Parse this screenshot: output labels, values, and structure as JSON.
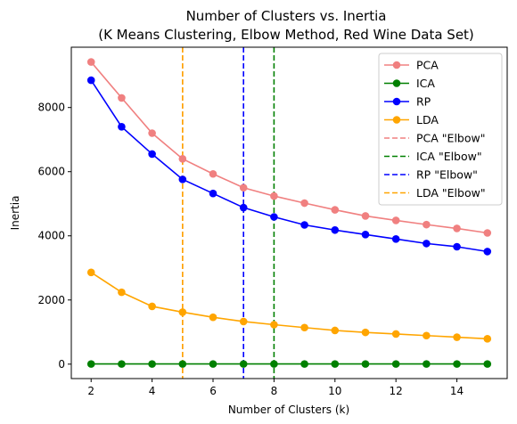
{
  "chart_data": {
    "type": "line",
    "title": [
      "Number of Clusters vs. Inertia",
      "(K Means Clustering, Elbow Method, Red Wine Data Set)"
    ],
    "xlabel": "Number of Clusters (k)",
    "ylabel": "Inertia",
    "xlim": [
      1.35,
      15.65
    ],
    "ylim": [
      -450,
      9880
    ],
    "xticks": [
      2,
      4,
      6,
      8,
      10,
      12,
      14
    ],
    "yticks": [
      0,
      2000,
      4000,
      6000,
      8000
    ],
    "legend_position": "top-right",
    "grid": false,
    "x": [
      2,
      3,
      4,
      5,
      6,
      7,
      8,
      9,
      10,
      11,
      12,
      13,
      14,
      15
    ],
    "series": [
      {
        "name": "PCA",
        "color": "#f08080",
        "values": [
          9420,
          8300,
          7200,
          6400,
          5930,
          5500,
          5240,
          5020,
          4810,
          4620,
          4480,
          4350,
          4230,
          4090
        ]
      },
      {
        "name": "ICA",
        "color": "#008000",
        "values": [
          5,
          5,
          5,
          5,
          5,
          5,
          5,
          5,
          5,
          5,
          5,
          5,
          5,
          5
        ]
      },
      {
        "name": "RP",
        "color": "#0000ff",
        "values": [
          8850,
          7400,
          6550,
          5760,
          5320,
          4880,
          4590,
          4340,
          4180,
          4040,
          3900,
          3760,
          3660,
          3510
        ]
      },
      {
        "name": "LDA",
        "color": "#ffa500",
        "values": [
          2860,
          2240,
          1800,
          1620,
          1460,
          1330,
          1230,
          1140,
          1050,
          990,
          940,
          890,
          840,
          790
        ]
      }
    ],
    "elbows": [
      {
        "name": "PCA \"Elbow\"",
        "color": "#f08080",
        "x": 5
      },
      {
        "name": "ICA \"Elbow\"",
        "color": "#008000",
        "x": 8
      },
      {
        "name": "RP \"Elbow\"",
        "color": "#0000ff",
        "x": 7
      },
      {
        "name": "LDA \"Elbow\"",
        "color": "#ffa500",
        "x": 5
      }
    ]
  }
}
